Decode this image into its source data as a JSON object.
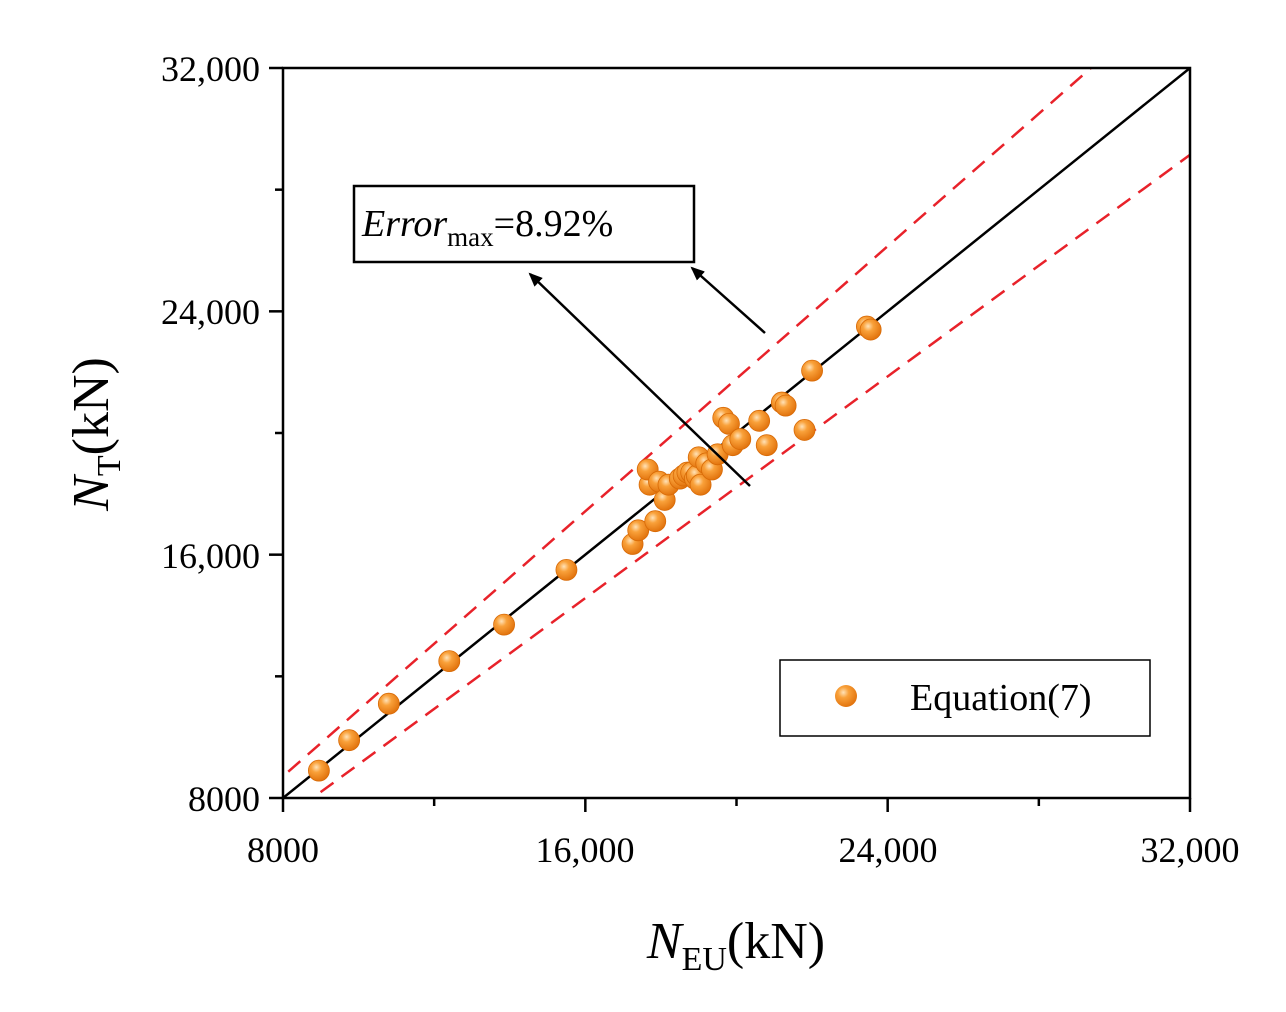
{
  "colors": {
    "point": "#f28a0f",
    "point_highlight": "#ffd39a",
    "reference_line": "#000000",
    "error_band": "#e8222a",
    "frame": "#000000"
  },
  "chart_data": {
    "type": "scatter",
    "title": "",
    "xlabel": {
      "main": "N",
      "sub": "EU",
      "unit": "(kN)"
    },
    "ylabel": {
      "main": "N",
      "sub": "T",
      "unit": "(kN)"
    },
    "xlim": [
      8000,
      32000
    ],
    "ylim": [
      8000,
      32000
    ],
    "xticks": [
      8000,
      16000,
      24000,
      32000
    ],
    "xtick_labels": [
      "8000",
      "16,000",
      "24,000",
      "32,000"
    ],
    "yticks": [
      8000,
      16000,
      24000,
      32000
    ],
    "ytick_labels": [
      "8000",
      "16,000",
      "24,000",
      "32,000"
    ],
    "grid": false,
    "legend": {
      "position": "bottom-right",
      "label": "Equation(7)"
    },
    "reference_line": {
      "name": "y = x",
      "slope": 1.0
    },
    "error_band_lines": [
      {
        "name": "upper +8.92%",
        "slope": 1.0892
      },
      {
        "name": "lower -8.92%",
        "slope": 0.9108
      }
    ],
    "annotation": {
      "main": "Error",
      "sub": "max",
      "value": "=8.92%"
    },
    "series": [
      {
        "name": "Equation(7)",
        "x": [
          8950,
          9750,
          10800,
          12400,
          13850,
          15500,
          17250,
          17400,
          17700,
          17650,
          17850,
          17950,
          18100,
          18200,
          18500,
          18600,
          18700,
          18800,
          18900,
          18950,
          19000,
          19050,
          19200,
          19350,
          19500,
          19650,
          19800,
          19900,
          20100,
          20600,
          20800,
          21200,
          21300,
          21800,
          22000,
          23450,
          23550
        ],
        "y": [
          8900,
          9900,
          11100,
          12500,
          13700,
          15500,
          16350,
          16800,
          18300,
          18800,
          17100,
          18400,
          17800,
          18300,
          18500,
          18600,
          18700,
          18700,
          18500,
          18600,
          19200,
          18300,
          19000,
          18800,
          19300,
          20500,
          20300,
          19600,
          19800,
          20400,
          19600,
          21000,
          20900,
          20100,
          22050,
          23500,
          23400
        ]
      }
    ]
  }
}
